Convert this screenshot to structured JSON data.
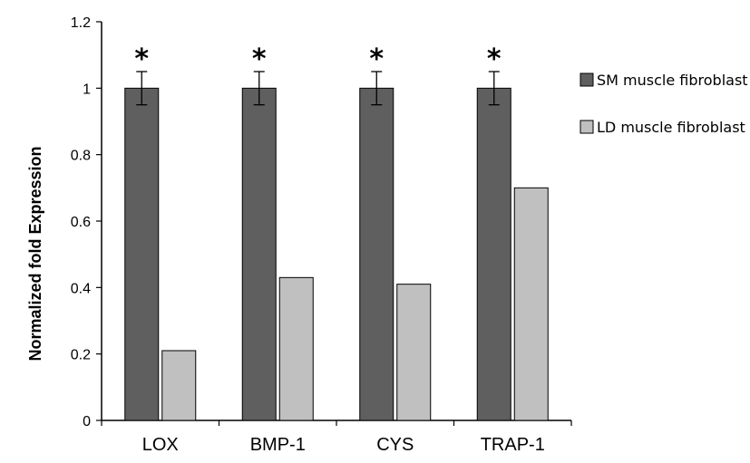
{
  "chart_data": {
    "type": "bar",
    "categories": [
      "LOX",
      "BMP-1",
      "CYS",
      "TRAP-1"
    ],
    "series": [
      {
        "name": "SM muscle fibroblast",
        "values": [
          1.0,
          1.0,
          1.0,
          1.0
        ],
        "error": [
          0.05,
          0.05,
          0.05,
          0.05
        ],
        "color": "#5f5f5f",
        "annotations": [
          "*",
          "*",
          "*",
          "*"
        ]
      },
      {
        "name": "LD muscle fibroblast",
        "values": [
          0.21,
          0.43,
          0.41,
          0.7
        ],
        "color": "#c0c0c0"
      }
    ],
    "title": "",
    "xlabel": "",
    "ylabel": "Normalized fold Expression",
    "ylim": [
      0,
      1.2
    ],
    "yticks": [
      "0",
      "0.2",
      "0.4",
      "0.6",
      "0.8",
      "1",
      "1.2"
    ],
    "grid": false,
    "legend_position": "right"
  }
}
